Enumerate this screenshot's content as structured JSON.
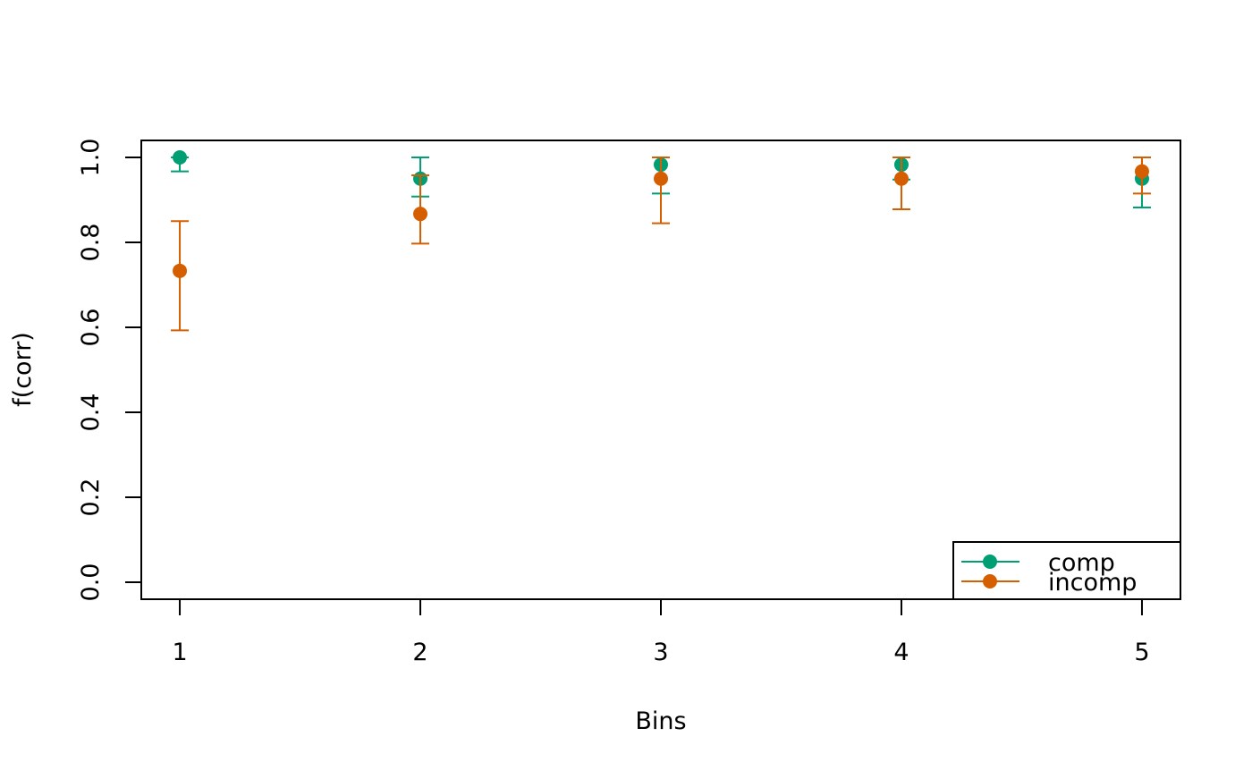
{
  "chart_data": {
    "type": "scatter",
    "title": "",
    "xlabel": "Bins",
    "ylabel": "f(corr)",
    "x": [
      1,
      2,
      3,
      4,
      5
    ],
    "x_ticks": [
      "1",
      "2",
      "3",
      "4",
      "5"
    ],
    "y_ticks": [
      "0.0",
      "0.2",
      "0.4",
      "0.6",
      "0.8",
      "1.0"
    ],
    "y_tick_values": [
      0.0,
      0.2,
      0.4,
      0.6,
      0.8,
      1.0
    ],
    "xlim": [
      0.84,
      5.16
    ],
    "ylim": [
      -0.04,
      1.04
    ],
    "grid": false,
    "error_bars": true,
    "legend": {
      "position": "bottom-right",
      "entries": [
        "comp",
        "incomp"
      ]
    },
    "series": [
      {
        "name": "comp",
        "color": "#009E73",
        "values": [
          1.0,
          0.95,
          0.983,
          0.983,
          0.95
        ],
        "lower": [
          0.967,
          0.908,
          0.915,
          0.948,
          0.882
        ],
        "upper": [
          1.0,
          1.0,
          1.0,
          1.0,
          1.0
        ]
      },
      {
        "name": "incomp",
        "color": "#D55E00",
        "values": [
          0.733,
          0.867,
          0.95,
          0.95,
          0.967
        ],
        "lower": [
          0.593,
          0.797,
          0.845,
          0.878,
          0.915
        ],
        "upper": [
          0.85,
          0.958,
          1.0,
          1.0,
          1.0
        ]
      }
    ]
  }
}
